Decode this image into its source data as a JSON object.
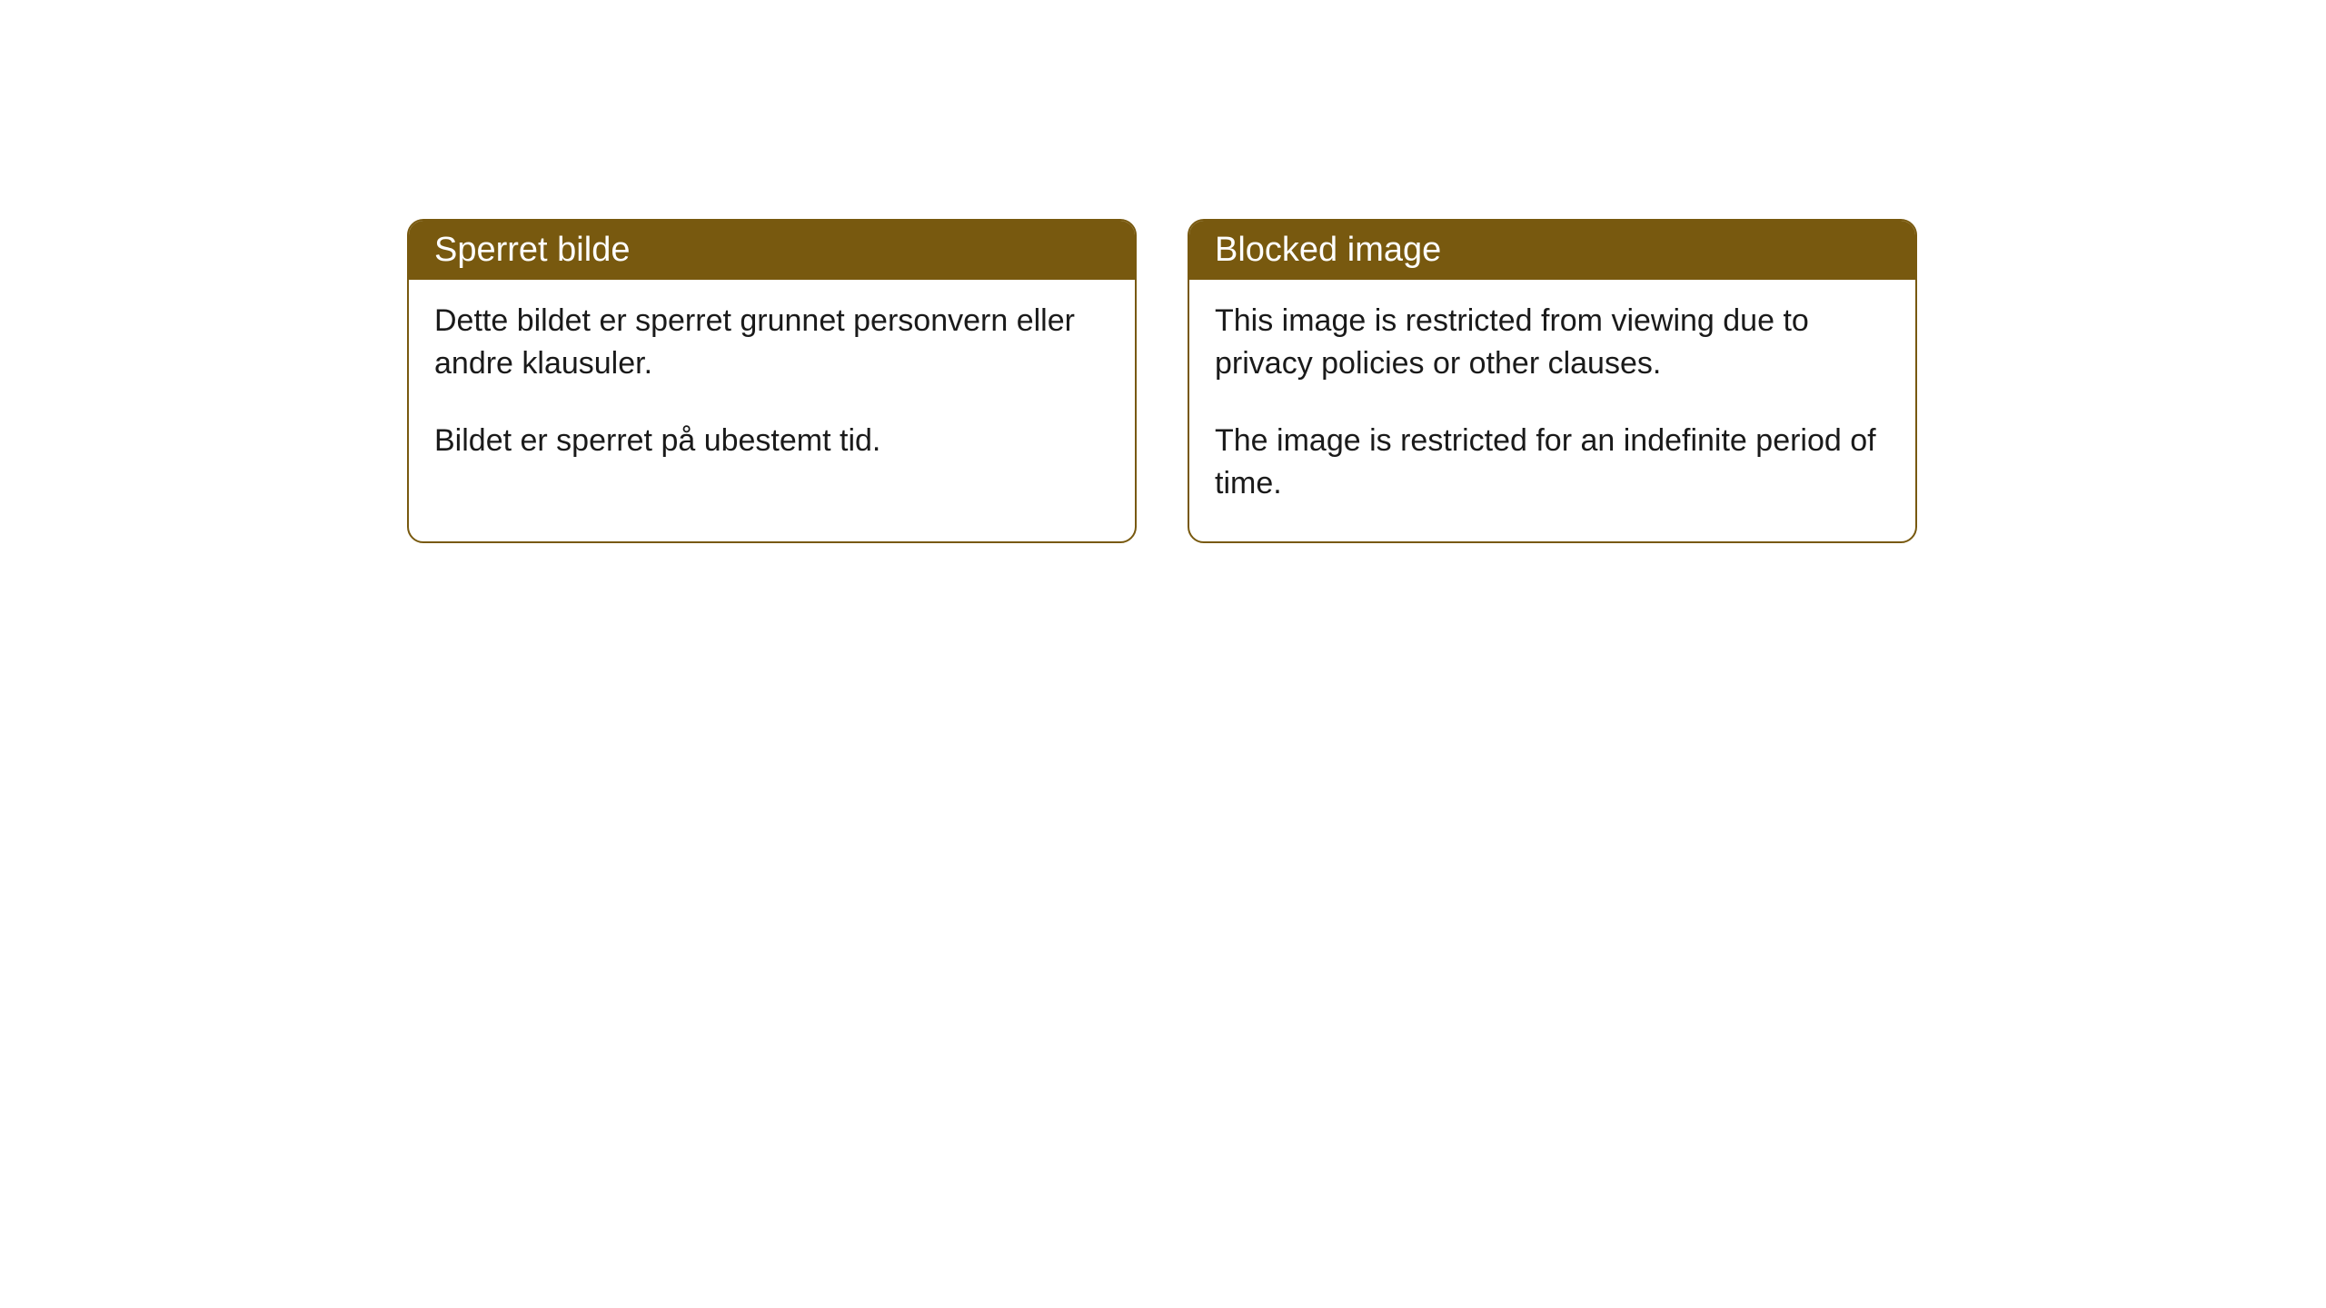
{
  "cards": [
    {
      "title": "Sperret bilde",
      "paragraph1": "Dette bildet er sperret grunnet personvern eller andre klausuler.",
      "paragraph2": "Bildet er sperret på ubestemt tid."
    },
    {
      "title": "Blocked image",
      "paragraph1": "This image is restricted from viewing due to privacy policies or other clauses.",
      "paragraph2": "The image is restricted for an indefinite period of time."
    }
  ],
  "styling": {
    "header_background_color": "#78590f",
    "header_text_color": "#ffffff",
    "card_border_color": "#78590f",
    "card_background_color": "#ffffff",
    "body_text_color": "#1a1a1a",
    "page_background_color": "#ffffff",
    "border_radius": 18,
    "header_font_size": 38,
    "body_font_size": 34
  }
}
